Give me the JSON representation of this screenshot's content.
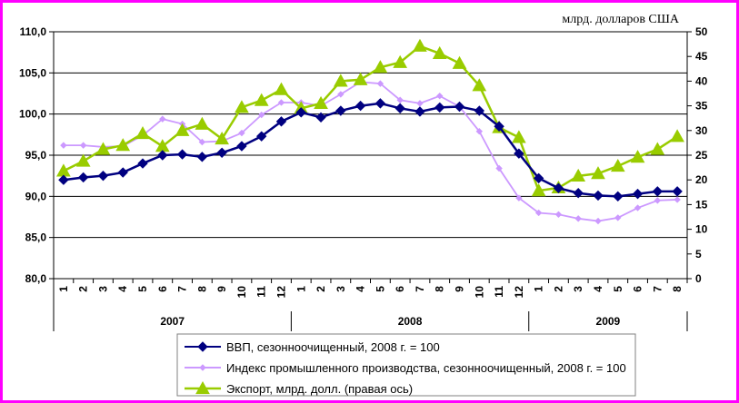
{
  "chart_data": {
    "type": "line",
    "months": [
      "1",
      "2",
      "3",
      "4",
      "5",
      "6",
      "7",
      "8",
      "9",
      "10",
      "11",
      "12",
      "1",
      "2",
      "3",
      "4",
      "5",
      "6",
      "7",
      "8",
      "9",
      "10",
      "11",
      "12",
      "1",
      "2",
      "3",
      "4",
      "5",
      "6",
      "7",
      "8"
    ],
    "years": [
      {
        "label": "2007",
        "span": 12
      },
      {
        "label": "2008",
        "span": 12
      },
      {
        "label": "2009",
        "span": 8
      }
    ],
    "y_left": {
      "range": [
        80,
        110
      ],
      "ticks": [
        "80,0",
        "85,0",
        "90,0",
        "95,0",
        "100,0",
        "105,0",
        "110,0"
      ],
      "tick_values": [
        80,
        85,
        90,
        95,
        100,
        105,
        110
      ]
    },
    "y_right": {
      "range": [
        0,
        50
      ],
      "ticks": [
        "0",
        "5",
        "10",
        "15",
        "20",
        "25",
        "30",
        "35",
        "40",
        "45",
        "50"
      ],
      "tick_values": [
        0,
        5,
        10,
        15,
        20,
        25,
        30,
        35,
        40,
        45,
        50
      ],
      "unit_label": "млрд. долларов США"
    },
    "grid": "horizontal",
    "legend_position": "bottom",
    "series": [
      {
        "name": "ВВП, сезонноочищенный, 2008 г. = 100",
        "axis": "left",
        "color": "#000080",
        "marker": "diamond",
        "values": [
          92.0,
          92.3,
          92.5,
          92.9,
          94.0,
          95.0,
          95.1,
          94.8,
          95.3,
          96.1,
          97.3,
          99.1,
          100.2,
          99.6,
          100.4,
          101.0,
          101.3,
          100.7,
          100.3,
          100.8,
          100.9,
          100.4,
          98.5,
          95.2,
          92.2,
          91.0,
          90.4,
          90.1,
          90.0,
          90.3,
          90.6,
          90.6
        ]
      },
      {
        "name": "Индекс промышленного производства, сезонноочищенный, 2008 г. = 100",
        "axis": "left",
        "color": "#cc99ff",
        "marker": "diamond",
        "values": [
          96.2,
          96.2,
          96.0,
          96.1,
          97.4,
          99.4,
          98.8,
          96.6,
          96.7,
          97.7,
          99.9,
          101.4,
          101.4,
          101.0,
          102.4,
          103.9,
          103.7,
          101.7,
          101.3,
          102.2,
          100.9,
          97.9,
          93.4,
          89.8,
          88.0,
          87.8,
          87.3,
          87.0,
          87.4,
          88.6,
          89.5,
          89.6
        ]
      },
      {
        "name": "Экспорт, млрд. долл. (правая ось)",
        "axis": "right",
        "color": "#99cc00",
        "marker": "triangle",
        "values": [
          21.8,
          23.8,
          26.2,
          27.0,
          29.4,
          26.8,
          30.0,
          31.3,
          28.3,
          34.7,
          36.1,
          38.3,
          34.5,
          35.5,
          40.0,
          40.3,
          42.8,
          43.8,
          47.1,
          45.6,
          43.6,
          39.1,
          30.6,
          28.6,
          17.8,
          18.4,
          20.8,
          21.3,
          22.8,
          24.6,
          26.2,
          28.8
        ]
      }
    ]
  }
}
